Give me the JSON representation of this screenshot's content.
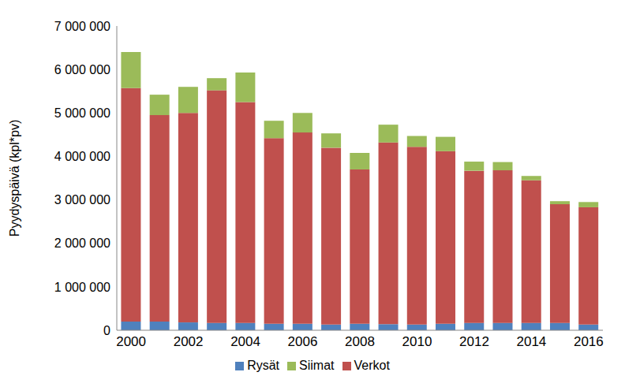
{
  "chart_data": {
    "type": "bar",
    "stacked": true,
    "grid": false,
    "legend": "bottom",
    "y_label": "Pyydyspäivä (kpl*pv)",
    "categories": [
      "2000",
      null,
      "2002",
      null,
      "2004",
      null,
      "2006",
      null,
      "2008",
      null,
      "2010",
      null,
      "2012",
      null,
      "2014",
      null,
      "2016"
    ],
    "series": [
      {
        "name": "Rysät",
        "color": "#4f81bd",
        "values": [
          200000,
          200000,
          180000,
          170000,
          170000,
          150000,
          150000,
          130000,
          150000,
          140000,
          130000,
          150000,
          170000,
          170000,
          170000,
          170000,
          130000
        ]
      },
      {
        "name": "Verkot",
        "color": "#c0504d",
        "values": [
          5370000,
          4750000,
          4820000,
          5350000,
          5080000,
          4270000,
          4400000,
          4070000,
          3550000,
          4180000,
          4090000,
          3970000,
          3500000,
          3510000,
          3280000,
          2730000,
          2700000
        ]
      },
      {
        "name": "Siimat",
        "color": "#9bbb59",
        "values": [
          830000,
          470000,
          600000,
          280000,
          680000,
          400000,
          450000,
          330000,
          380000,
          410000,
          250000,
          330000,
          210000,
          190000,
          100000,
          70000,
          120000
        ]
      }
    ],
    "ylim": [
      0,
      7000000
    ],
    "yticks": [
      0,
      {
        "value": 1000000,
        "label": "1 000 000"
      },
      {
        "value": 2000000,
        "label": "2 000 000"
      },
      {
        "value": 3000000,
        "label": "3 000 000"
      },
      {
        "value": 4000000,
        "label": "4 000 000"
      },
      {
        "value": 5000000,
        "label": "5 000 000"
      },
      {
        "value": 6000000,
        "label": "6 000 000"
      },
      {
        "value": 7000000,
        "label": "7 000 000"
      }
    ]
  }
}
